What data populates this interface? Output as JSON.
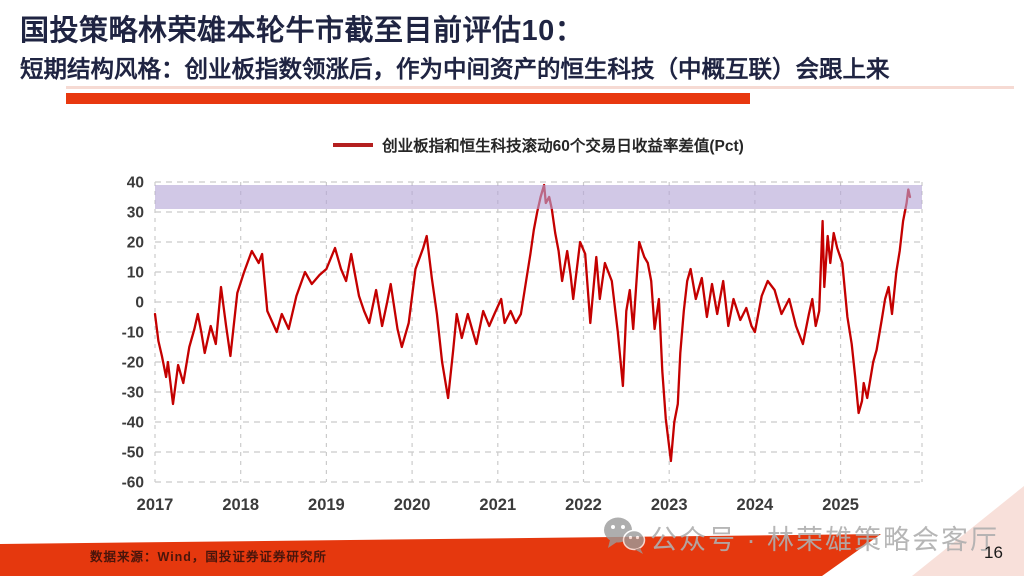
{
  "slide": {
    "title": "国投策略林荣雄本轮牛市截至目前评估10：",
    "subtitle": "短期结构风格：创业板指数领涨后，作为中间资产的恒生科技（中概互联）会跟上来",
    "source_note": "数据来源：Wind，国投证券证券研究所",
    "watermark": "公众号 · 林荣雄策略会客厅",
    "page_number": "16",
    "accent_red": "#E8380F",
    "title_color": "#1F2442"
  },
  "chart_data": {
    "type": "line",
    "legend_label": "创业板指和恒生科技滚动60个交易日收益率差值(Pct)",
    "line_color": "#C40000",
    "grid": "dashed",
    "legend_position": "top-center",
    "xlim": [
      2017,
      2025.95
    ],
    "ylim": [
      -60,
      40
    ],
    "yticks": [
      40,
      30,
      20,
      10,
      0,
      -10,
      -20,
      -30,
      -40,
      -50,
      -60
    ],
    "xticks": [
      2017,
      2018,
      2019,
      2020,
      2021,
      2022,
      2023,
      2024,
      2025
    ],
    "highlight_band": {
      "from": 31,
      "to": 39,
      "color": "#B4A7D6",
      "opacity": 0.62
    },
    "points": [
      [
        2017.0,
        -4
      ],
      [
        2017.04,
        -13
      ],
      [
        2017.08,
        -18
      ],
      [
        2017.13,
        -25
      ],
      [
        2017.15,
        -20
      ],
      [
        2017.21,
        -34
      ],
      [
        2017.27,
        -21
      ],
      [
        2017.33,
        -27
      ],
      [
        2017.4,
        -15
      ],
      [
        2017.46,
        -9
      ],
      [
        2017.5,
        -4
      ],
      [
        2017.54,
        -10
      ],
      [
        2017.58,
        -17
      ],
      [
        2017.65,
        -8
      ],
      [
        2017.71,
        -14
      ],
      [
        2017.77,
        5
      ],
      [
        2017.83,
        -8
      ],
      [
        2017.88,
        -18
      ],
      [
        2017.96,
        3
      ],
      [
        2018.04,
        10
      ],
      [
        2018.13,
        17
      ],
      [
        2018.21,
        13
      ],
      [
        2018.25,
        16
      ],
      [
        2018.31,
        -3
      ],
      [
        2018.42,
        -10
      ],
      [
        2018.48,
        -4
      ],
      [
        2018.56,
        -9
      ],
      [
        2018.65,
        2
      ],
      [
        2018.75,
        10
      ],
      [
        2018.83,
        6
      ],
      [
        2018.92,
        9
      ],
      [
        2019.0,
        11
      ],
      [
        2019.1,
        18
      ],
      [
        2019.17,
        11
      ],
      [
        2019.23,
        7
      ],
      [
        2019.29,
        16
      ],
      [
        2019.38,
        2
      ],
      [
        2019.44,
        -3
      ],
      [
        2019.5,
        -7
      ],
      [
        2019.58,
        4
      ],
      [
        2019.65,
        -8
      ],
      [
        2019.71,
        0
      ],
      [
        2019.75,
        6
      ],
      [
        2019.83,
        -9
      ],
      [
        2019.88,
        -15
      ],
      [
        2019.96,
        -7
      ],
      [
        2020.04,
        11
      ],
      [
        2020.13,
        18
      ],
      [
        2020.17,
        22
      ],
      [
        2020.23,
        8
      ],
      [
        2020.29,
        -4
      ],
      [
        2020.35,
        -20
      ],
      [
        2020.42,
        -32
      ],
      [
        2020.48,
        -16
      ],
      [
        2020.52,
        -4
      ],
      [
        2020.58,
        -12
      ],
      [
        2020.65,
        -4
      ],
      [
        2020.71,
        -10
      ],
      [
        2020.75,
        -14
      ],
      [
        2020.83,
        -3
      ],
      [
        2020.9,
        -8
      ],
      [
        2020.96,
        -4
      ],
      [
        2021.04,
        1
      ],
      [
        2021.08,
        -7
      ],
      [
        2021.15,
        -3
      ],
      [
        2021.21,
        -7
      ],
      [
        2021.27,
        -4
      ],
      [
        2021.33,
        7
      ],
      [
        2021.38,
        16
      ],
      [
        2021.42,
        24
      ],
      [
        2021.46,
        30
      ],
      [
        2021.5,
        35
      ],
      [
        2021.54,
        39
      ],
      [
        2021.56,
        33
      ],
      [
        2021.6,
        35
      ],
      [
        2021.63,
        31
      ],
      [
        2021.67,
        23
      ],
      [
        2021.71,
        17
      ],
      [
        2021.75,
        7
      ],
      [
        2021.81,
        17
      ],
      [
        2021.85,
        9
      ],
      [
        2021.88,
        1
      ],
      [
        2021.96,
        20
      ],
      [
        2022.02,
        16
      ],
      [
        2022.08,
        -7
      ],
      [
        2022.15,
        15
      ],
      [
        2022.19,
        1
      ],
      [
        2022.25,
        13
      ],
      [
        2022.33,
        7
      ],
      [
        2022.4,
        -10
      ],
      [
        2022.46,
        -28
      ],
      [
        2022.5,
        -3
      ],
      [
        2022.54,
        4
      ],
      [
        2022.58,
        -9
      ],
      [
        2022.65,
        20
      ],
      [
        2022.71,
        15
      ],
      [
        2022.75,
        13
      ],
      [
        2022.79,
        7
      ],
      [
        2022.83,
        -9
      ],
      [
        2022.88,
        1
      ],
      [
        2022.92,
        -23
      ],
      [
        2022.96,
        -39
      ],
      [
        2023.02,
        -53
      ],
      [
        2023.06,
        -40
      ],
      [
        2023.1,
        -34
      ],
      [
        2023.13,
        -17
      ],
      [
        2023.17,
        -3
      ],
      [
        2023.21,
        7
      ],
      [
        2023.25,
        11
      ],
      [
        2023.31,
        1
      ],
      [
        2023.38,
        8
      ],
      [
        2023.44,
        -5
      ],
      [
        2023.5,
        6
      ],
      [
        2023.56,
        -4
      ],
      [
        2023.63,
        7
      ],
      [
        2023.69,
        -8
      ],
      [
        2023.75,
        1
      ],
      [
        2023.83,
        -6
      ],
      [
        2023.9,
        -2
      ],
      [
        2023.96,
        -8
      ],
      [
        2024.0,
        -10
      ],
      [
        2024.08,
        2
      ],
      [
        2024.15,
        7
      ],
      [
        2024.23,
        4
      ],
      [
        2024.31,
        -4
      ],
      [
        2024.4,
        1
      ],
      [
        2024.48,
        -8
      ],
      [
        2024.56,
        -14
      ],
      [
        2024.63,
        -4
      ],
      [
        2024.67,
        1
      ],
      [
        2024.71,
        -8
      ],
      [
        2024.75,
        -3
      ],
      [
        2024.79,
        27
      ],
      [
        2024.81,
        5
      ],
      [
        2024.85,
        22
      ],
      [
        2024.88,
        13
      ],
      [
        2024.92,
        23
      ],
      [
        2024.96,
        18
      ],
      [
        2025.02,
        13
      ],
      [
        2025.08,
        -5
      ],
      [
        2025.13,
        -14
      ],
      [
        2025.17,
        -25
      ],
      [
        2025.21,
        -37
      ],
      [
        2025.25,
        -33
      ],
      [
        2025.27,
        -27
      ],
      [
        2025.31,
        -32
      ],
      [
        2025.38,
        -20
      ],
      [
        2025.42,
        -16
      ],
      [
        2025.48,
        -6
      ],
      [
        2025.52,
        1
      ],
      [
        2025.56,
        5
      ],
      [
        2025.6,
        -4
      ],
      [
        2025.65,
        10
      ],
      [
        2025.69,
        17
      ],
      [
        2025.73,
        27
      ],
      [
        2025.77,
        33
      ],
      [
        2025.79,
        37.5
      ],
      [
        2025.81,
        35
      ]
    ]
  }
}
